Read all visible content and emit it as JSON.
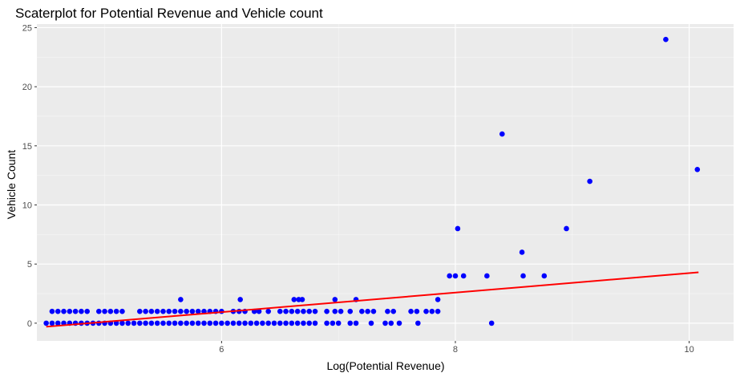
{
  "chart_data": {
    "type": "scatter",
    "title": "Scaterplot for Potential Revenue and Vehicle count",
    "xlabel": "Log(Potential Revenue)",
    "ylabel": "Vehicle Count",
    "xlim": [
      4.42,
      10.38
    ],
    "ylim": [
      -1.5,
      25.3
    ],
    "x_ticks": [
      6,
      8,
      10
    ],
    "x_tick_labels": [
      "6",
      "8",
      "10"
    ],
    "x_minor_ticks": [
      5,
      7,
      9
    ],
    "y_ticks": [
      0,
      5,
      10,
      15,
      20,
      25
    ],
    "y_tick_labels": [
      "0",
      "5",
      "10",
      "15",
      "20",
      "25"
    ],
    "y_minor_ticks": [
      2.5,
      7.5,
      12.5,
      17.5,
      22.5
    ],
    "grid": true,
    "background_color": "#ebebeb",
    "point_color": "#0000ff",
    "line_color": "#ff0000",
    "trend_line": {
      "x": [
        4.5,
        10.08
      ],
      "y": [
        -0.3,
        4.3
      ]
    },
    "series": [
      {
        "values_count_note": "",
        "points": [
          [
            9.8,
            24
          ],
          [
            8.4,
            16
          ],
          [
            10.07,
            13
          ],
          [
            9.15,
            12
          ],
          [
            8.02,
            8
          ],
          [
            8.95,
            8
          ],
          [
            8.57,
            6
          ],
          [
            7.95,
            4
          ],
          [
            8.0,
            4
          ],
          [
            8.07,
            4
          ],
          [
            8.27,
            4
          ],
          [
            8.58,
            4
          ],
          [
            8.76,
            4
          ],
          [
            5.65,
            2
          ],
          [
            6.16,
            2
          ],
          [
            6.62,
            2
          ],
          [
            6.66,
            2
          ],
          [
            6.69,
            2
          ],
          [
            6.97,
            2
          ],
          [
            7.15,
            2
          ],
          [
            7.85,
            2
          ],
          [
            4.55,
            1
          ],
          [
            4.6,
            1
          ],
          [
            4.65,
            1
          ],
          [
            4.7,
            1
          ],
          [
            4.75,
            1
          ],
          [
            4.8,
            1
          ],
          [
            4.85,
            1
          ],
          [
            4.95,
            1
          ],
          [
            5.0,
            1
          ],
          [
            5.05,
            1
          ],
          [
            5.1,
            1
          ],
          [
            5.15,
            1
          ],
          [
            5.3,
            1
          ],
          [
            5.35,
            1
          ],
          [
            5.4,
            1
          ],
          [
            5.45,
            1
          ],
          [
            5.5,
            1
          ],
          [
            5.55,
            1
          ],
          [
            5.6,
            1
          ],
          [
            5.65,
            1
          ],
          [
            5.7,
            1
          ],
          [
            5.75,
            1
          ],
          [
            5.8,
            1
          ],
          [
            5.85,
            1
          ],
          [
            5.9,
            1
          ],
          [
            5.95,
            1
          ],
          [
            6.0,
            1
          ],
          [
            6.1,
            1
          ],
          [
            6.15,
            1
          ],
          [
            6.2,
            1
          ],
          [
            6.28,
            1
          ],
          [
            6.32,
            1
          ],
          [
            6.4,
            1
          ],
          [
            6.5,
            1
          ],
          [
            6.55,
            1
          ],
          [
            6.6,
            1
          ],
          [
            6.65,
            1
          ],
          [
            6.7,
            1
          ],
          [
            6.75,
            1
          ],
          [
            6.8,
            1
          ],
          [
            6.9,
            1
          ],
          [
            6.97,
            1
          ],
          [
            7.02,
            1
          ],
          [
            7.1,
            1
          ],
          [
            7.2,
            1
          ],
          [
            7.25,
            1
          ],
          [
            7.3,
            1
          ],
          [
            7.42,
            1
          ],
          [
            7.47,
            1
          ],
          [
            7.62,
            1
          ],
          [
            7.67,
            1
          ],
          [
            7.75,
            1
          ],
          [
            7.8,
            1
          ],
          [
            7.85,
            1
          ],
          [
            4.5,
            0
          ],
          [
            4.55,
            0
          ],
          [
            4.6,
            0
          ],
          [
            4.65,
            0
          ],
          [
            4.7,
            0
          ],
          [
            4.75,
            0
          ],
          [
            4.8,
            0
          ],
          [
            4.85,
            0
          ],
          [
            4.9,
            0
          ],
          [
            4.95,
            0
          ],
          [
            5.0,
            0
          ],
          [
            5.05,
            0
          ],
          [
            5.1,
            0
          ],
          [
            5.15,
            0
          ],
          [
            5.2,
            0
          ],
          [
            5.25,
            0
          ],
          [
            5.3,
            0
          ],
          [
            5.35,
            0
          ],
          [
            5.4,
            0
          ],
          [
            5.45,
            0
          ],
          [
            5.5,
            0
          ],
          [
            5.55,
            0
          ],
          [
            5.6,
            0
          ],
          [
            5.65,
            0
          ],
          [
            5.7,
            0
          ],
          [
            5.75,
            0
          ],
          [
            5.8,
            0
          ],
          [
            5.85,
            0
          ],
          [
            5.9,
            0
          ],
          [
            5.95,
            0
          ],
          [
            6.0,
            0
          ],
          [
            6.05,
            0
          ],
          [
            6.1,
            0
          ],
          [
            6.15,
            0
          ],
          [
            6.2,
            0
          ],
          [
            6.25,
            0
          ],
          [
            6.3,
            0
          ],
          [
            6.35,
            0
          ],
          [
            6.4,
            0
          ],
          [
            6.45,
            0
          ],
          [
            6.5,
            0
          ],
          [
            6.55,
            0
          ],
          [
            6.6,
            0
          ],
          [
            6.65,
            0
          ],
          [
            6.7,
            0
          ],
          [
            6.75,
            0
          ],
          [
            6.8,
            0
          ],
          [
            6.9,
            0
          ],
          [
            6.95,
            0
          ],
          [
            7.0,
            0
          ],
          [
            7.1,
            0
          ],
          [
            7.15,
            0
          ],
          [
            7.28,
            0
          ],
          [
            7.4,
            0
          ],
          [
            7.45,
            0
          ],
          [
            7.52,
            0
          ],
          [
            7.68,
            0
          ],
          [
            8.31,
            0
          ]
        ]
      }
    ]
  }
}
